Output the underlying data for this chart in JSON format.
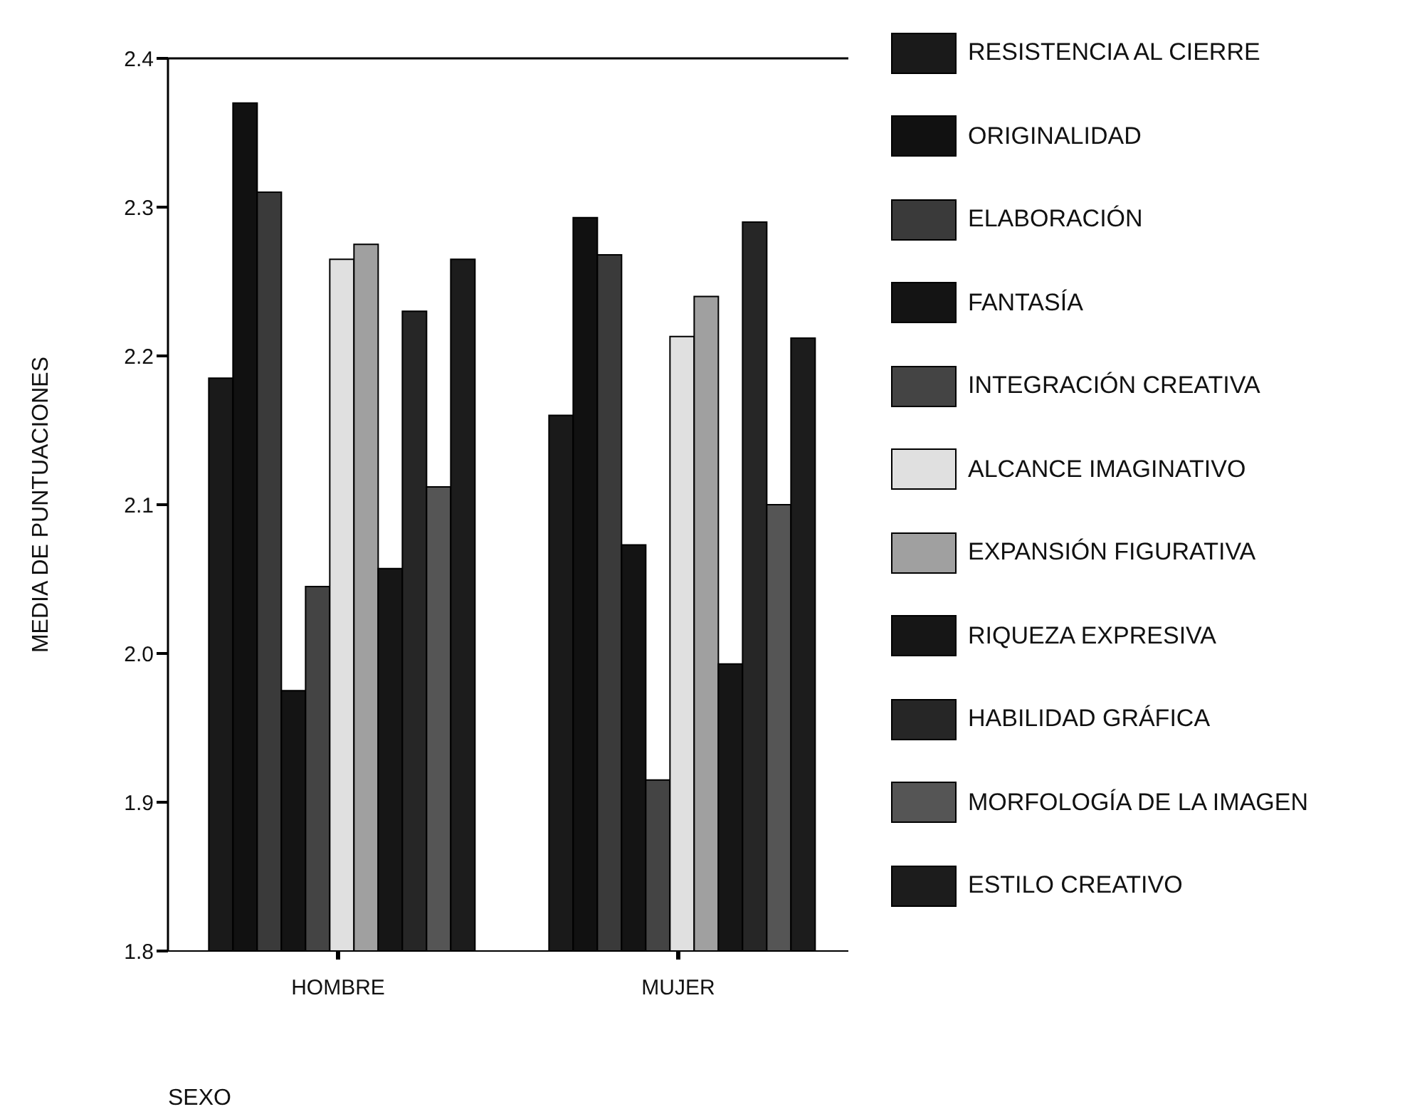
{
  "chart_data": {
    "type": "bar",
    "xlabel": "SEXO",
    "ylabel": "MEDIA DE PUNTUACIONES",
    "categories": [
      "HOMBRE",
      "MUJER"
    ],
    "ylim": [
      1.8,
      2.4
    ],
    "yticks": [
      {
        "value": 1.8,
        "label": "1.8"
      },
      {
        "value": 1.9,
        "label": "1.9"
      },
      {
        "value": 2.0,
        "label": "2.0"
      },
      {
        "value": 2.1,
        "label": "2.1"
      },
      {
        "value": 2.2,
        "label": "2.2"
      },
      {
        "value": 2.3,
        "label": "2.3"
      },
      {
        "value": 2.4,
        "label": "2.4"
      }
    ],
    "grid": false,
    "legend": "right",
    "series": [
      {
        "name": "RESISTENCIA AL CIERRE",
        "color": "#1a1a1a",
        "values": [
          2.185,
          2.16
        ]
      },
      {
        "name": "ORIGINALIDAD",
        "color": "#111111",
        "values": [
          2.37,
          2.293
        ]
      },
      {
        "name": "ELABORACIÓN",
        "color": "#3a3a3a",
        "values": [
          2.31,
          2.268
        ]
      },
      {
        "name": "FANTASÍA",
        "color": "#141414",
        "values": [
          1.975,
          2.073
        ]
      },
      {
        "name": "INTEGRACIÓN CREATIVA",
        "color": "#444444",
        "values": [
          2.045,
          1.915
        ]
      },
      {
        "name": "ALCANCE IMAGINATIVO",
        "color": "#e0e0e0",
        "values": [
          2.265,
          2.213
        ]
      },
      {
        "name": "EXPANSIÓN FIGURATIVA",
        "color": "#a0a0a0",
        "values": [
          2.275,
          2.24
        ]
      },
      {
        "name": "RIQUEZA EXPRESIVA",
        "color": "#161616",
        "values": [
          2.057,
          1.993
        ]
      },
      {
        "name": "HABILIDAD GRÁFICA",
        "color": "#262626",
        "values": [
          2.23,
          2.29
        ]
      },
      {
        "name": "MORFOLOGÍA DE LA IMAGEN",
        "color": "#555555",
        "values": [
          2.112,
          2.1
        ]
      },
      {
        "name": "ESTILO CREATIVO",
        "color": "#1c1c1c",
        "values": [
          2.265,
          2.212
        ]
      }
    ]
  }
}
